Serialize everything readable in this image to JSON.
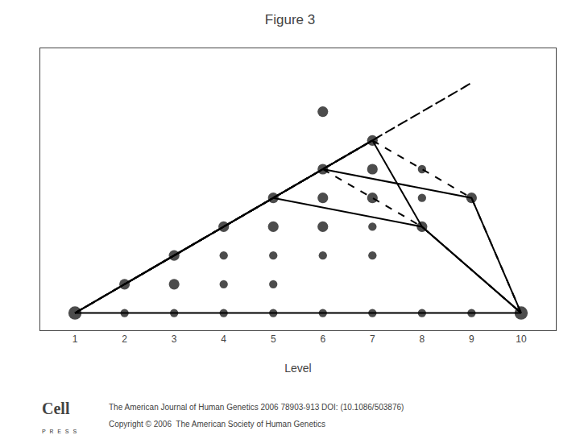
{
  "chart_data": {
    "type": "line",
    "title": "Figure 3",
    "xlabel": "Level",
    "xlim": [
      0.3,
      10.7
    ],
    "xticks": [
      1,
      2,
      3,
      4,
      5,
      6,
      7,
      8,
      9,
      10
    ],
    "ylim": [
      -0.6,
      9.2
    ],
    "tick_labels": "x",
    "grid": false,
    "annotations": [
      "Cell",
      "P R E S S",
      "The American Journal of Human Genetics 2006 78903-913 DOI: (10.1086/503876)",
      "Copyright © 2006  The American Society of Human Genetics"
    ],
    "series": [
      {
        "type": "line",
        "color": "#000000",
        "line_style": "solid",
        "x": [
          1,
          2,
          3,
          2,
          1
        ],
        "values": [
          0,
          1,
          2,
          1,
          0
        ]
      },
      {
        "type": "line",
        "color": "#000000",
        "line_style": "dashed",
        "x": [
          1,
          3,
          5,
          3,
          1
        ],
        "values": [
          0,
          2,
          4,
          2,
          0
        ]
      },
      {
        "type": "line",
        "color": "#000000",
        "line_style": "solid",
        "x": [
          1,
          4,
          7,
          4,
          1
        ],
        "values": [
          0,
          3,
          6,
          3,
          0
        ]
      },
      {
        "type": "line",
        "color": "#000000",
        "line_style": "dashed",
        "x": [
          1,
          5,
          9,
          5,
          1
        ],
        "values": [
          0,
          4,
          8,
          4,
          0
        ]
      },
      {
        "type": "line",
        "color": "#000000",
        "line_style": "dotted",
        "x": [
          2,
          3,
          4,
          3,
          2
        ],
        "values": [
          1,
          2,
          3,
          2,
          1
        ]
      },
      {
        "type": "line",
        "color": "#000000",
        "line_style": "solid",
        "x": [
          2,
          4,
          6,
          4,
          2
        ],
        "values": [
          1,
          3,
          5,
          3,
          1
        ]
      },
      {
        "type": "line",
        "color": "#000000",
        "line_style": "dashed",
        "x": [
          3,
          5,
          7,
          5,
          3
        ],
        "values": [
          2,
          4,
          6,
          4,
          2
        ]
      },
      {
        "type": "line",
        "color": "#000000",
        "line_style": "solid",
        "x": [
          4,
          5,
          6,
          5,
          4
        ],
        "values": [
          3,
          4,
          5,
          4,
          3
        ]
      },
      {
        "type": "line",
        "color": "#000000",
        "line_style": "dotted",
        "x": [
          5,
          6,
          7,
          6,
          5
        ],
        "values": [
          4,
          5,
          6,
          5,
          4
        ]
      },
      {
        "type": "line",
        "color": "#000000",
        "line_style": "solid",
        "x": [
          5,
          8,
          10
        ],
        "values": [
          4,
          3,
          0
        ]
      },
      {
        "type": "line",
        "color": "#000000",
        "line_style": "solid",
        "x": [
          6,
          9,
          10
        ],
        "values": [
          5,
          4,
          0
        ]
      },
      {
        "type": "line",
        "color": "#000000",
        "line_style": "dashed",
        "x": [
          6,
          8,
          10
        ],
        "values": [
          5,
          3,
          0
        ]
      },
      {
        "type": "line",
        "color": "#000000",
        "line_style": "solid",
        "x": [
          6,
          7,
          8,
          10
        ],
        "values": [
          5,
          6,
          3,
          0
        ]
      },
      {
        "type": "line",
        "color": "#000000",
        "line_style": "dashed",
        "x": [
          7,
          9,
          10
        ],
        "values": [
          6,
          4,
          0
        ]
      },
      {
        "type": "line",
        "color": "#000000",
        "line_style": "solid",
        "x": [
          1,
          10
        ],
        "values": [
          0,
          0
        ]
      },
      {
        "type": "scatter",
        "color": "#000000",
        "x": [
          1,
          2,
          3,
          4,
          5,
          6,
          7,
          8,
          9,
          10,
          2,
          3,
          4,
          5,
          3,
          4,
          5,
          6,
          7,
          4,
          5,
          6,
          7,
          8,
          5,
          6,
          7,
          8,
          9,
          6,
          7,
          8,
          7,
          6
        ],
        "values": [
          0,
          0,
          0,
          0,
          0,
          0,
          0,
          0,
          0,
          0,
          1,
          1,
          1,
          1,
          2,
          2,
          2,
          2,
          2,
          3,
          3,
          3,
          3,
          3,
          4,
          4,
          4,
          4,
          4,
          5,
          5,
          5,
          6,
          7
        ],
        "sizes": [
          140,
          55,
          55,
          55,
          55,
          55,
          55,
          55,
          55,
          140,
          90,
          90,
          55,
          55,
          90,
          55,
          55,
          55,
          55,
          90,
          90,
          90,
          55,
          90,
          90,
          90,
          90,
          55,
          90,
          90,
          90,
          55,
          90,
          90
        ]
      }
    ]
  }
}
